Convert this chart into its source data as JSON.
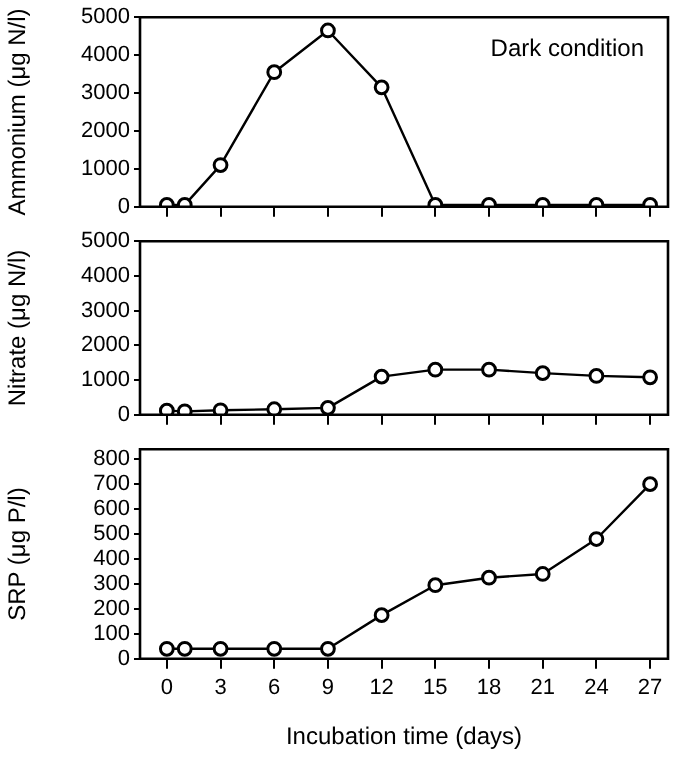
{
  "chart_data": [
    {
      "type": "line",
      "ylabel": "Ammonium (μg N/l)",
      "annotations": [
        "Dark condition"
      ],
      "x": [
        0,
        1,
        3,
        6,
        9,
        12,
        15,
        18,
        21,
        24,
        27
      ],
      "series": [
        {
          "color": "#000000",
          "values": [
            50,
            50,
            1100,
            3550,
            4650,
            3150,
            50,
            50,
            50,
            50,
            50
          ]
        }
      ],
      "xlim": [
        -1.5,
        28
      ],
      "xticks": [
        {
          "value": 0,
          "label": null
        },
        {
          "value": 3,
          "label": null
        },
        {
          "value": 6,
          "label": null
        },
        {
          "value": 9,
          "label": null
        },
        {
          "value": 12,
          "label": null
        },
        {
          "value": 15,
          "label": null
        },
        {
          "value": 18,
          "label": null
        },
        {
          "value": 21,
          "label": null
        },
        {
          "value": 24,
          "label": null
        },
        {
          "value": 27,
          "label": null
        }
      ],
      "ylim": [
        0,
        5000
      ],
      "yticks": [
        0,
        1000,
        2000,
        3000,
        4000,
        5000
      ],
      "tick_labels": "y",
      "marker": "circle",
      "grid": false,
      "legend": false
    },
    {
      "type": "line",
      "ylabel": "Nitrate (μg N/l)",
      "x": [
        0,
        1,
        3,
        6,
        9,
        12,
        15,
        18,
        21,
        24,
        27
      ],
      "series": [
        {
          "color": "#000000",
          "values": [
            120,
            100,
            130,
            160,
            200,
            1100,
            1300,
            1300,
            1200,
            1120,
            1080
          ]
        }
      ],
      "xlim": [
        -1.5,
        28
      ],
      "xticks": [
        {
          "value": 0,
          "label": null
        },
        {
          "value": 3,
          "label": null
        },
        {
          "value": 6,
          "label": null
        },
        {
          "value": 9,
          "label": null
        },
        {
          "value": 12,
          "label": null
        },
        {
          "value": 15,
          "label": null
        },
        {
          "value": 18,
          "label": null
        },
        {
          "value": 21,
          "label": null
        },
        {
          "value": 24,
          "label": null
        },
        {
          "value": 27,
          "label": null
        }
      ],
      "ylim": [
        0,
        5000
      ],
      "yticks": [
        0,
        1000,
        2000,
        3000,
        4000,
        5000
      ],
      "tick_labels": "y",
      "marker": "circle",
      "grid": false,
      "legend": false
    },
    {
      "type": "line",
      "xlabel": "Incubation time (days)",
      "ylabel": "SRP (μg P/l)",
      "x": [
        0,
        1,
        3,
        6,
        9,
        12,
        15,
        18,
        21,
        24,
        27
      ],
      "series": [
        {
          "color": "#000000",
          "values": [
            40,
            40,
            40,
            40,
            40,
            175,
            295,
            325,
            340,
            480,
            700
          ]
        }
      ],
      "xlim": [
        -1.5,
        28
      ],
      "xticks": [
        0,
        3,
        6,
        9,
        12,
        15,
        18,
        21,
        24,
        27
      ],
      "ylim": [
        0,
        840
      ],
      "yticks": [
        0,
        100,
        200,
        300,
        400,
        500,
        600,
        700,
        800
      ],
      "marker": "circle",
      "grid": false,
      "legend": false
    }
  ]
}
